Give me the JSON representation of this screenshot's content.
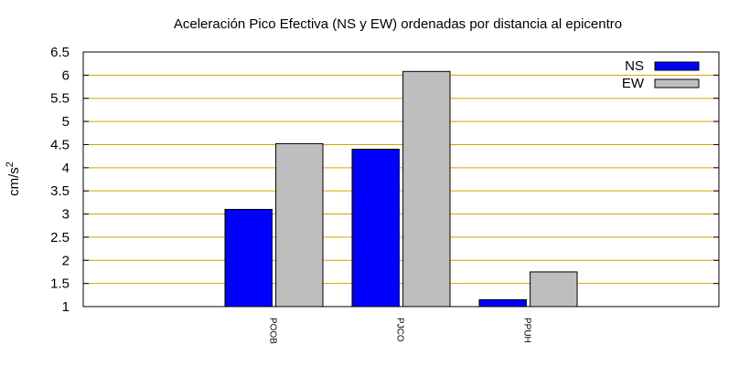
{
  "chart_data": {
    "type": "bar",
    "title": "Aceleración Pico Efectiva (NS y EW) ordenadas por distancia al epicentro",
    "ylabel": "cm/s",
    "ylabel_superscript": "2",
    "xlabel": "",
    "ylim": [
      1,
      6.5
    ],
    "yticks": [
      "1",
      "1.5",
      "2",
      "2.5",
      "3",
      "3.5",
      "4",
      "4.5",
      "5",
      "5.5",
      "6",
      "6.5"
    ],
    "categories": [
      "",
      "POOB",
      "PJCO",
      "PPUH",
      ""
    ],
    "series": [
      {
        "name": "NS",
        "color": "#0000ff",
        "values": [
          null,
          3.1,
          4.4,
          1.15,
          null
        ]
      },
      {
        "name": "EW",
        "color": "#bebebe",
        "values": [
          null,
          4.52,
          6.08,
          1.75,
          null
        ]
      }
    ],
    "grid": true,
    "grid_color": "#d6a300",
    "legend_position": "top-right"
  }
}
